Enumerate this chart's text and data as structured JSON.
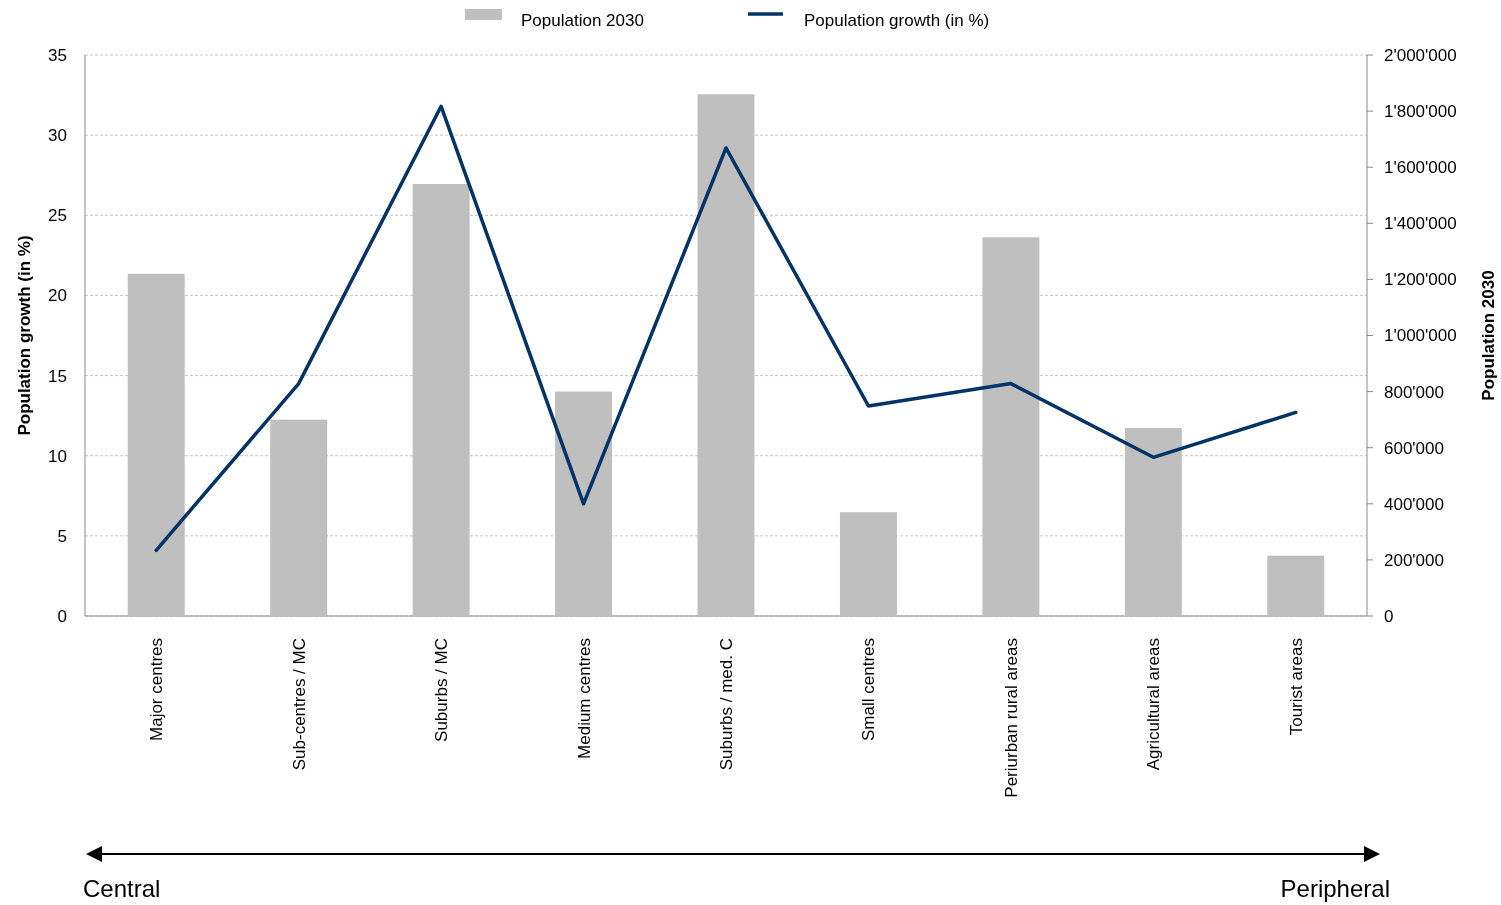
{
  "chart_data": {
    "type": "bar",
    "categories": [
      "Major centres",
      "Sub-centres / MC",
      "Suburbs / MC",
      "Medium centres",
      "Suburbs / med. C",
      "Small centres",
      "Periurban rural areas",
      "Agricultural areas",
      "Tourist areas"
    ],
    "series": [
      {
        "name": "Population 2030",
        "axis": "y2",
        "color": "#bfbfbf",
        "values": [
          1220000,
          700000,
          1540000,
          800000,
          1860000,
          370000,
          1350000,
          670000,
          215000
        ]
      },
      {
        "name": "Population growth (in %)",
        "type": "line",
        "axis": "y",
        "color": "#003366",
        "values": [
          4.1,
          14.5,
          31.8,
          7.0,
          29.2,
          13.1,
          14.5,
          9.9,
          12.7
        ]
      }
    ],
    "ylabel": "Population growth (in %)",
    "y2label": "Population 2030",
    "ylim": [
      0,
      35
    ],
    "yticks": [
      0,
      5,
      10,
      15,
      20,
      25,
      30,
      35
    ],
    "y2lim": [
      0,
      2000000
    ],
    "y2ticks": [
      {
        "value": 0,
        "label": "0"
      },
      {
        "value": 200000,
        "label": "200'000"
      },
      {
        "value": 400000,
        "label": "400'000"
      },
      {
        "value": 600000,
        "label": "600'000"
      },
      {
        "value": 800000,
        "label": "800'000"
      },
      {
        "value": 1000000,
        "label": "1'000'000"
      },
      {
        "value": 1200000,
        "label": "1'200'000"
      },
      {
        "value": 1400000,
        "label": "1'400'000"
      },
      {
        "value": 1600000,
        "label": "1'600'000"
      },
      {
        "value": 1800000,
        "label": "1'800'000"
      },
      {
        "value": 2000000,
        "label": "2'000'000"
      }
    ],
    "grid": "y",
    "legend": "top",
    "annotations": [
      "Central",
      "Peripheral"
    ]
  }
}
